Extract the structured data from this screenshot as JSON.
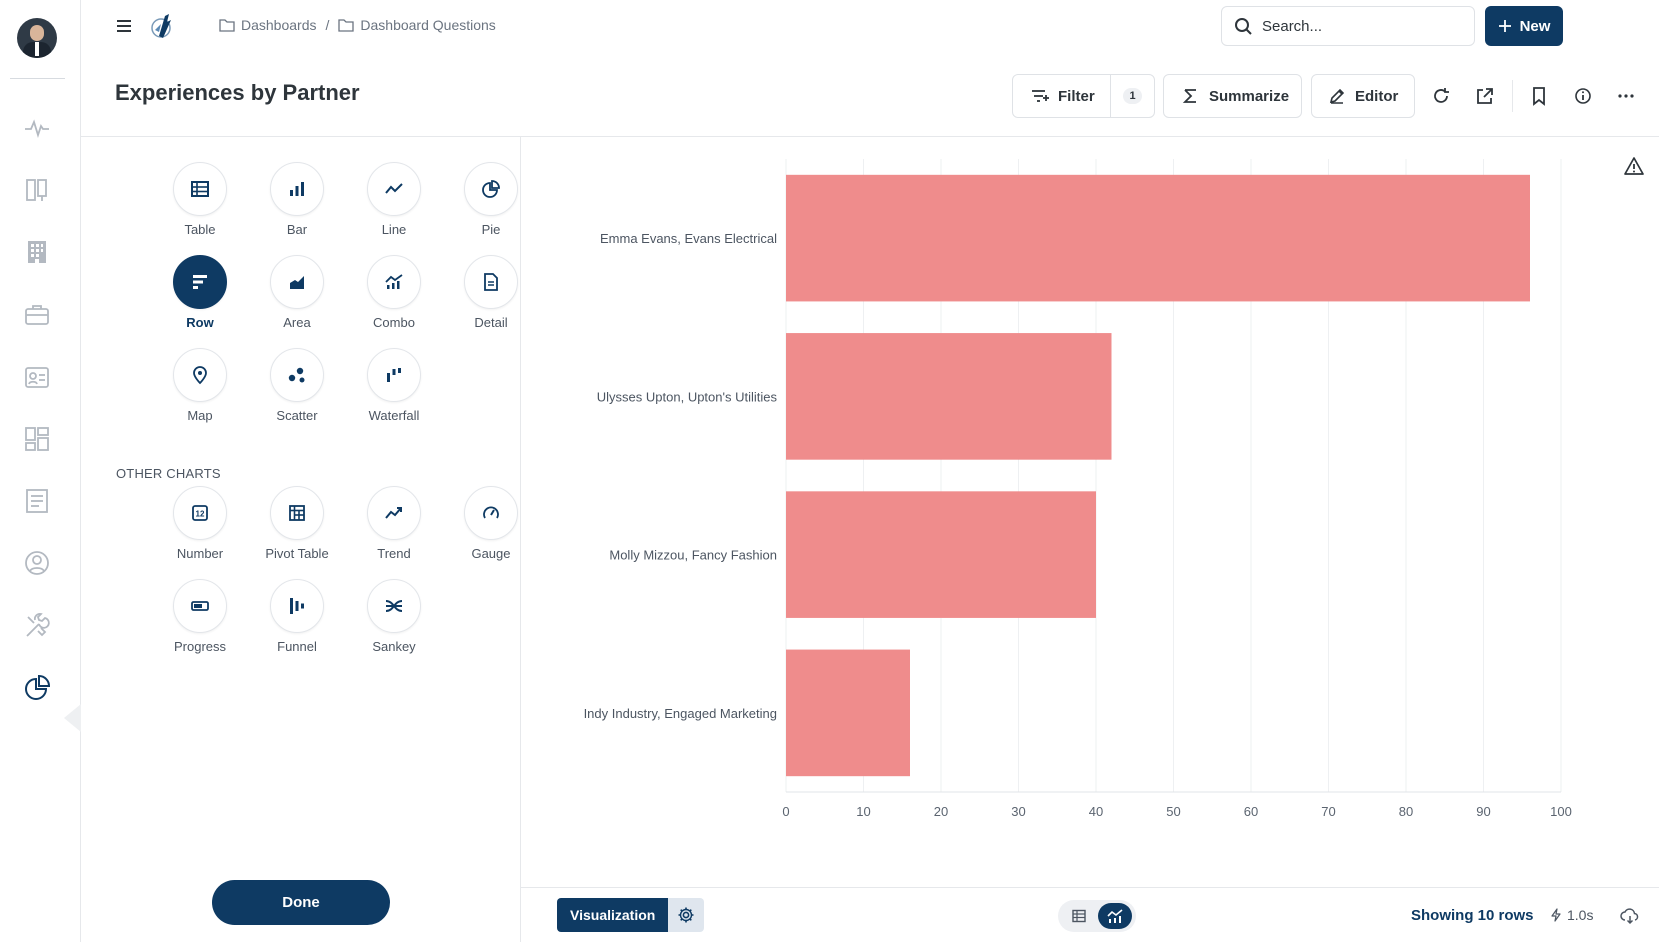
{
  "breadcrumb": {
    "items": [
      "Dashboards",
      "Dashboard Questions"
    ],
    "separator": "/"
  },
  "search": {
    "placeholder": "Search..."
  },
  "new_button": {
    "label": "New"
  },
  "page": {
    "title": "Experiences by Partner"
  },
  "toolbar": {
    "filter_label": "Filter",
    "filter_count": "1",
    "summarize_label": "Summarize",
    "editor_label": "Editor"
  },
  "chart_types": {
    "main": [
      {
        "label": "Table",
        "icon": "table-icon"
      },
      {
        "label": "Bar",
        "icon": "bar-icon"
      },
      {
        "label": "Line",
        "icon": "line-icon"
      },
      {
        "label": "Pie",
        "icon": "pie-icon"
      },
      {
        "label": "Row",
        "icon": "row-icon",
        "active": true
      },
      {
        "label": "Area",
        "icon": "area-icon"
      },
      {
        "label": "Combo",
        "icon": "combo-icon"
      },
      {
        "label": "Detail",
        "icon": "detail-icon"
      },
      {
        "label": "Map",
        "icon": "map-pin-icon"
      },
      {
        "label": "Scatter",
        "icon": "scatter-icon"
      },
      {
        "label": "Waterfall",
        "icon": "waterfall-icon"
      }
    ],
    "other_title": "OTHER CHARTS",
    "other": [
      {
        "label": "Number",
        "icon": "number-icon"
      },
      {
        "label": "Pivot Table",
        "icon": "pivot-table-icon"
      },
      {
        "label": "Trend",
        "icon": "trend-icon"
      },
      {
        "label": "Gauge",
        "icon": "gauge-icon"
      },
      {
        "label": "Progress",
        "icon": "progress-icon"
      },
      {
        "label": "Funnel",
        "icon": "funnel-icon"
      },
      {
        "label": "Sankey",
        "icon": "sankey-icon"
      }
    ]
  },
  "done_button": {
    "label": "Done"
  },
  "chart_data": {
    "type": "bar",
    "orientation": "horizontal",
    "categories": [
      "Emma Evans, Evans Electrical",
      "Ulysses Upton, Upton's Utilities",
      "Molly Mizzou, Fancy Fashion",
      "Indy Industry, Engaged Marketing"
    ],
    "values": [
      96,
      42,
      40,
      16
    ],
    "xlim": [
      0,
      100
    ],
    "xticks": [
      0,
      10,
      20,
      30,
      40,
      50,
      60,
      70,
      80,
      90,
      100
    ],
    "grid": true,
    "bar_color": "#ef8c8c"
  },
  "footer": {
    "visualization_label": "Visualization",
    "rows_label": "Showing 10 rows",
    "time_label": "1.0s"
  },
  "colors": {
    "brand": "#0e3a63",
    "bar": "#ef8c8c"
  }
}
